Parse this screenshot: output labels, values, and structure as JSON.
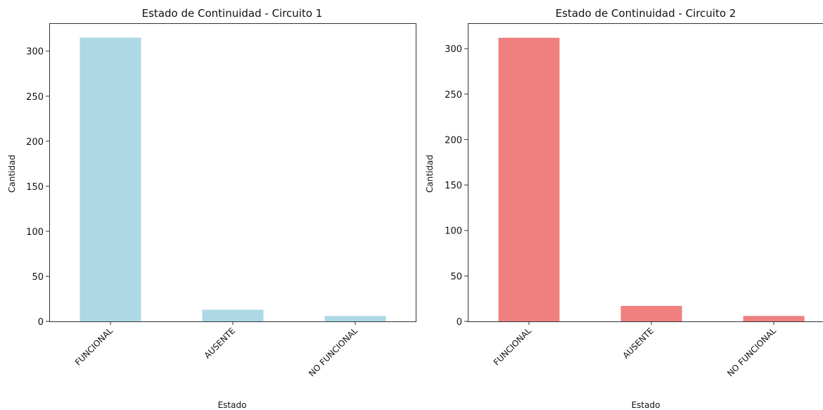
{
  "chart_data": [
    {
      "type": "bar",
      "title": "Estado de Continuidad - Circuito 1",
      "xlabel": "Estado",
      "ylabel": "Cantidad",
      "categories": [
        "FUNCIONAL",
        "AUSENTE",
        "NO FUNCIONAL"
      ],
      "values": [
        315,
        13,
        6
      ],
      "ylim": [
        0,
        331
      ],
      "yticks": [
        "0",
        "50",
        "100",
        "150",
        "200",
        "250",
        "300"
      ],
      "grid": false,
      "color": "#add8e6"
    },
    {
      "type": "bar",
      "title": "Estado de Continuidad - Circuito 2",
      "xlabel": "Estado",
      "ylabel": "Cantidad",
      "categories": [
        "FUNCIONAL",
        "AUSENTE",
        "NO FUNCIONAL"
      ],
      "values": [
        312,
        17,
        6
      ],
      "ylim": [
        0,
        328
      ],
      "yticks": [
        "0",
        "50",
        "100",
        "150",
        "200",
        "250",
        "300"
      ],
      "grid": false,
      "color": "#f08080"
    }
  ]
}
